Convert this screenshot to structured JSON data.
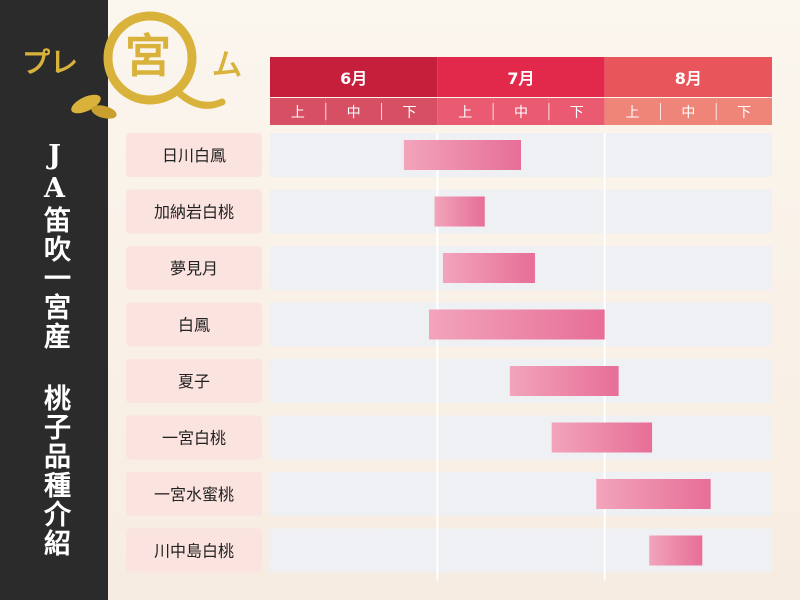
{
  "logo": {
    "text": "プレ宮ム"
  },
  "sidebar": {
    "title": "JA笛吹一宮産 桃子品種介紹"
  },
  "colors": {
    "month_6": "#c51f3c",
    "month_7": "#e2284b",
    "month_8": "#e8555a",
    "sub_6": "#d64f63",
    "sub_7": "#ea5b72",
    "sub_8": "#ef8478",
    "row_bg": "#eef0f3",
    "label_bg": "#fbe3e0",
    "bar_start": "#f2a4bb",
    "bar_end": "#e76e97"
  },
  "chart_data": {
    "type": "gantt",
    "periods": [
      {
        "month": "6月",
        "subs": [
          "上",
          "中",
          "下"
        ]
      },
      {
        "month": "7月",
        "subs": [
          "上",
          "中",
          "下"
        ]
      },
      {
        "month": "8月",
        "subs": [
          "上",
          "中",
          "下"
        ]
      }
    ],
    "tasks": [
      {
        "name": "日川白鳳",
        "start": 2.4,
        "end": 4.5
      },
      {
        "name": "加納岩白桃",
        "start": 2.95,
        "end": 3.85
      },
      {
        "name": "夢見月",
        "start": 3.1,
        "end": 4.75
      },
      {
        "name": "白鳳",
        "start": 2.85,
        "end": 6.0
      },
      {
        "name": "夏子",
        "start": 4.3,
        "end": 6.25
      },
      {
        "name": "一宮白桃",
        "start": 5.05,
        "end": 6.85
      },
      {
        "name": "一宮水蜜桃",
        "start": 5.85,
        "end": 7.9
      },
      {
        "name": "川中島白桃",
        "start": 6.8,
        "end": 7.75
      }
    ]
  }
}
